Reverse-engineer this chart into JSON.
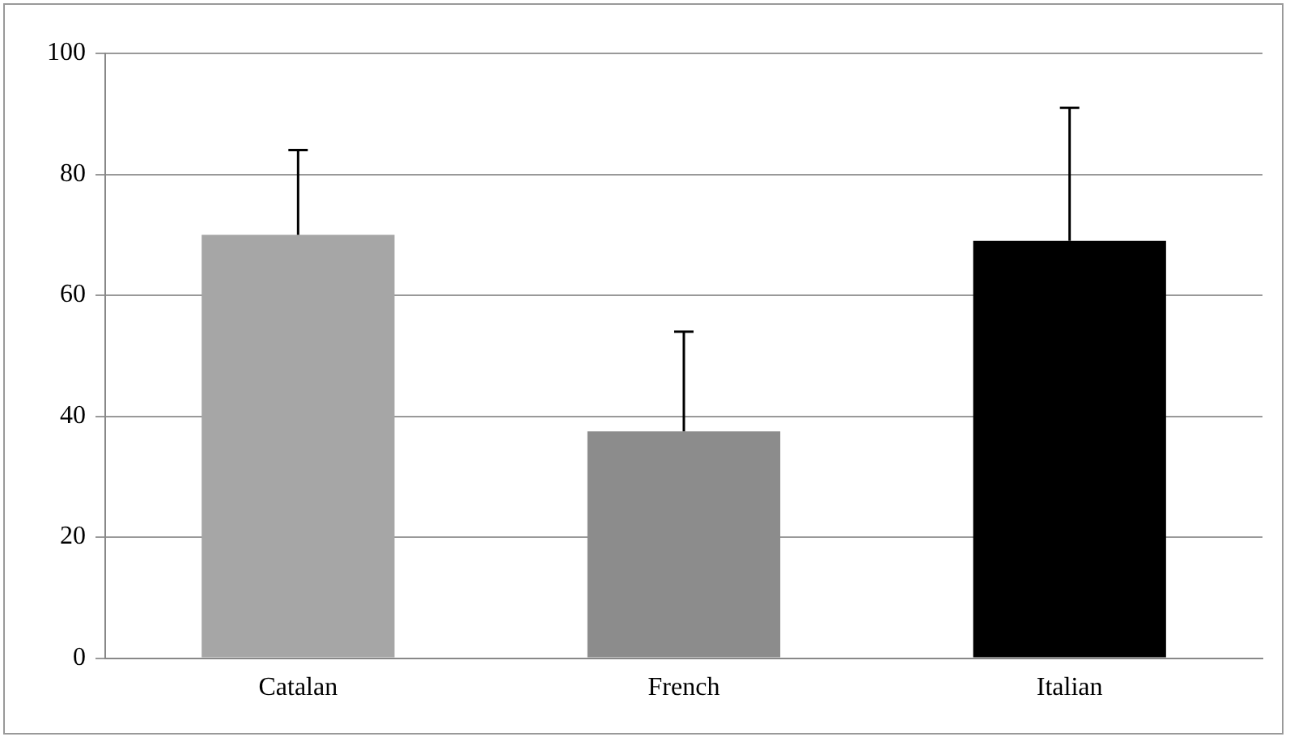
{
  "chart_data": {
    "type": "bar",
    "categories": [
      "Catalan",
      "French",
      "Italian"
    ],
    "values": [
      70,
      37.5,
      69
    ],
    "colors": [
      "#a6a6a6",
      "#8c8c8c",
      "#000000"
    ],
    "errors": [
      [
        70,
        84
      ],
      [
        37.5,
        54
      ],
      [
        69,
        91
      ]
    ],
    "ylim": [
      0,
      100
    ],
    "yticks": [
      0,
      20,
      40,
      60,
      80,
      100
    ],
    "grid": "y",
    "legend": false
  }
}
